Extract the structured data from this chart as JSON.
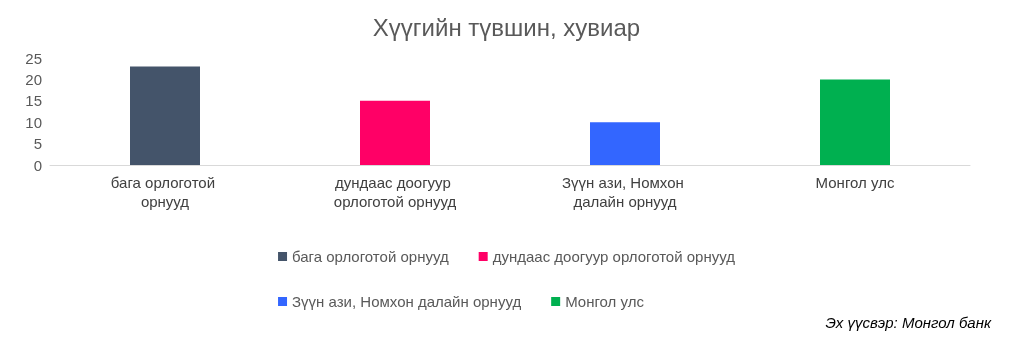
{
  "chart_data": {
    "type": "bar",
    "title": "Хүүгийн түвшин, хувиар",
    "categories": [
      "бага орлоготой орнууд",
      "дундаас доогуур орлоготой орнууд",
      "Зүүн ази, Номхон далайн орнууд",
      "Монгол улс"
    ],
    "series": [
      {
        "name": "бага орлоготой орнууд",
        "color": "#44546a",
        "values": [
          23,
          null,
          null,
          null
        ]
      },
      {
        "name": "дундаас доогуур орлоготой орнууд",
        "color": "#ff0066",
        "values": [
          null,
          15,
          null,
          null
        ]
      },
      {
        "name": "Зүүн ази, Номхон далайн орнууд",
        "color": "#3366ff",
        "values": [
          null,
          null,
          10,
          null
        ]
      },
      {
        "name": "Монгол улс",
        "color": "#00b050",
        "values": [
          null,
          null,
          null,
          20
        ]
      }
    ],
    "stacked": true,
    "ylim": [
      0,
      25
    ],
    "yticks": [
      0,
      5,
      10,
      15,
      20,
      25
    ],
    "grid": false,
    "legend": "bottom",
    "annotations": [
      "Эх үүсвэр: Монгол банк"
    ]
  }
}
